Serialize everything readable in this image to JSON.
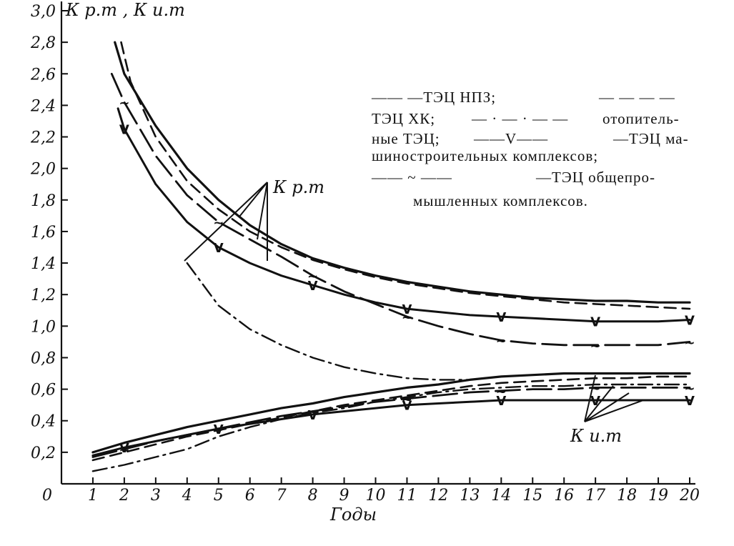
{
  "chart_data": {
    "type": "line",
    "ylabel": "К р.т , К и.т",
    "xlabel": "Годы",
    "x_ticks": [
      0,
      1,
      2,
      3,
      4,
      5,
      6,
      7,
      8,
      9,
      10,
      11,
      12,
      13,
      14,
      15,
      16,
      17,
      18,
      19,
      20
    ],
    "y_ticks": [
      "0,2",
      "0,4",
      "0,6",
      "0,8",
      "1,0",
      "1,2",
      "1,4",
      "1,6",
      "1,8",
      "2,0",
      "2,2",
      "2,4",
      "2,6",
      "2,8",
      "3,0"
    ],
    "x_tick_labels": [
      "0",
      "1",
      "2",
      "3",
      "4",
      "5",
      "6",
      "7",
      "8",
      "9",
      "10",
      "11",
      "12",
      "13",
      "14",
      "15",
      "16",
      "17",
      "18",
      "19",
      "20"
    ],
    "xlim": [
      0,
      20
    ],
    "ylim": [
      0,
      3.0
    ],
    "grid": false,
    "legend": [
      "—— —ТЭЦ НПЗ;",
      "— — — —",
      "ТЭЦ ХК;",
      "— · — · — —",
      "отопитель-",
      "ные ТЭЦ;",
      "——V——",
      "—ТЭЦ ма-",
      "шиностроительных комплексов;",
      "—— ~ ——",
      "—ТЭЦ общепро-",
      "мышленных комплексов."
    ],
    "annotations": [
      "К р.т",
      "К и.т"
    ],
    "series": [
      {
        "group": "Kp",
        "style": "solid",
        "x": [
          1.7,
          2,
          3,
          4,
          5,
          6,
          7,
          8,
          9,
          10,
          11,
          12,
          13,
          14,
          15,
          16,
          17,
          18,
          19,
          20
        ],
        "y": [
          2.8,
          2.6,
          2.27,
          2.0,
          1.8,
          1.64,
          1.52,
          1.43,
          1.37,
          1.32,
          1.28,
          1.25,
          1.22,
          1.2,
          1.18,
          1.17,
          1.16,
          1.16,
          1.15,
          1.15
        ]
      },
      {
        "group": "Kp",
        "style": "dash",
        "x": [
          1.9,
          2.2,
          3,
          4,
          5,
          6,
          7,
          8,
          9,
          10,
          11,
          12,
          13,
          14,
          15,
          16,
          17,
          18,
          19,
          20
        ],
        "y": [
          2.8,
          2.55,
          2.2,
          1.92,
          1.74,
          1.6,
          1.5,
          1.42,
          1.36,
          1.31,
          1.27,
          1.24,
          1.21,
          1.19,
          1.17,
          1.15,
          1.14,
          1.13,
          1.12,
          1.11
        ]
      },
      {
        "group": "Kp",
        "style": "dashdot",
        "x": [
          4,
          5,
          6,
          7,
          8,
          9,
          10,
          11,
          12,
          13
        ],
        "y": [
          1.4,
          1.13,
          0.98,
          0.88,
          0.8,
          0.74,
          0.7,
          0.67,
          0.66,
          0.66
        ]
      },
      {
        "group": "Kp",
        "style": "v",
        "x": [
          1.8,
          2,
          3,
          4,
          5,
          6,
          7,
          8,
          9,
          10,
          11,
          12,
          13,
          14,
          15,
          16,
          17,
          18,
          19,
          20
        ],
        "y": [
          2.38,
          2.25,
          1.9,
          1.66,
          1.5,
          1.4,
          1.32,
          1.26,
          1.2,
          1.15,
          1.11,
          1.09,
          1.07,
          1.06,
          1.05,
          1.04,
          1.03,
          1.03,
          1.03,
          1.04
        ]
      },
      {
        "group": "Kp",
        "style": "tilde",
        "x": [
          1.6,
          2,
          3,
          4,
          5,
          6,
          7,
          8,
          9,
          10,
          11,
          12,
          13,
          14,
          15,
          16,
          17,
          18,
          19,
          20
        ],
        "y": [
          2.6,
          2.42,
          2.08,
          1.83,
          1.66,
          1.55,
          1.44,
          1.32,
          1.22,
          1.14,
          1.06,
          1.0,
          0.95,
          0.91,
          0.89,
          0.88,
          0.88,
          0.88,
          0.88,
          0.9
        ]
      },
      {
        "group": "Ki",
        "style": "solid",
        "x": [
          1,
          2,
          3,
          4,
          5,
          6,
          7,
          8,
          9,
          10,
          11,
          12,
          13,
          14,
          15,
          16,
          17,
          18,
          19,
          20
        ],
        "y": [
          0.2,
          0.26,
          0.31,
          0.36,
          0.4,
          0.44,
          0.48,
          0.51,
          0.55,
          0.58,
          0.61,
          0.63,
          0.66,
          0.68,
          0.69,
          0.7,
          0.7,
          0.7,
          0.7,
          0.7
        ]
      },
      {
        "group": "Ki",
        "style": "dash",
        "x": [
          1,
          2,
          3,
          4,
          5,
          6,
          7,
          8,
          9,
          10,
          11,
          12,
          13,
          14,
          15,
          16,
          17,
          18,
          19,
          20
        ],
        "y": [
          0.15,
          0.2,
          0.25,
          0.3,
          0.34,
          0.38,
          0.42,
          0.46,
          0.5,
          0.53,
          0.56,
          0.59,
          0.62,
          0.64,
          0.65,
          0.66,
          0.67,
          0.67,
          0.68,
          0.68
        ]
      },
      {
        "group": "Ki",
        "style": "dashdot",
        "x": [
          1,
          2,
          3,
          4,
          5,
          6,
          7,
          8,
          9,
          10,
          11,
          12,
          13,
          14,
          15,
          16,
          17,
          18,
          19,
          20
        ],
        "y": [
          0.08,
          0.12,
          0.17,
          0.22,
          0.3,
          0.36,
          0.41,
          0.45,
          0.48,
          0.52,
          0.55,
          0.58,
          0.6,
          0.61,
          0.62,
          0.62,
          0.63,
          0.63,
          0.63,
          0.63
        ]
      },
      {
        "group": "Ki",
        "style": "tilde",
        "x": [
          1,
          2,
          3,
          4,
          5,
          6,
          7,
          8,
          9,
          10,
          11,
          12,
          13,
          14,
          15,
          16,
          17,
          18,
          19,
          20
        ],
        "y": [
          0.17,
          0.22,
          0.27,
          0.31,
          0.35,
          0.39,
          0.43,
          0.46,
          0.49,
          0.52,
          0.54,
          0.56,
          0.58,
          0.59,
          0.6,
          0.6,
          0.61,
          0.61,
          0.61,
          0.61
        ]
      },
      {
        "group": "Ki",
        "style": "v",
        "x": [
          1,
          2,
          3,
          4,
          5,
          6,
          7,
          8,
          9,
          10,
          11,
          12,
          13,
          14,
          15,
          16,
          17,
          18,
          19,
          20
        ],
        "y": [
          0.18,
          0.23,
          0.27,
          0.31,
          0.35,
          0.38,
          0.41,
          0.44,
          0.46,
          0.48,
          0.5,
          0.51,
          0.52,
          0.53,
          0.53,
          0.53,
          0.53,
          0.53,
          0.53,
          0.53
        ]
      }
    ]
  }
}
